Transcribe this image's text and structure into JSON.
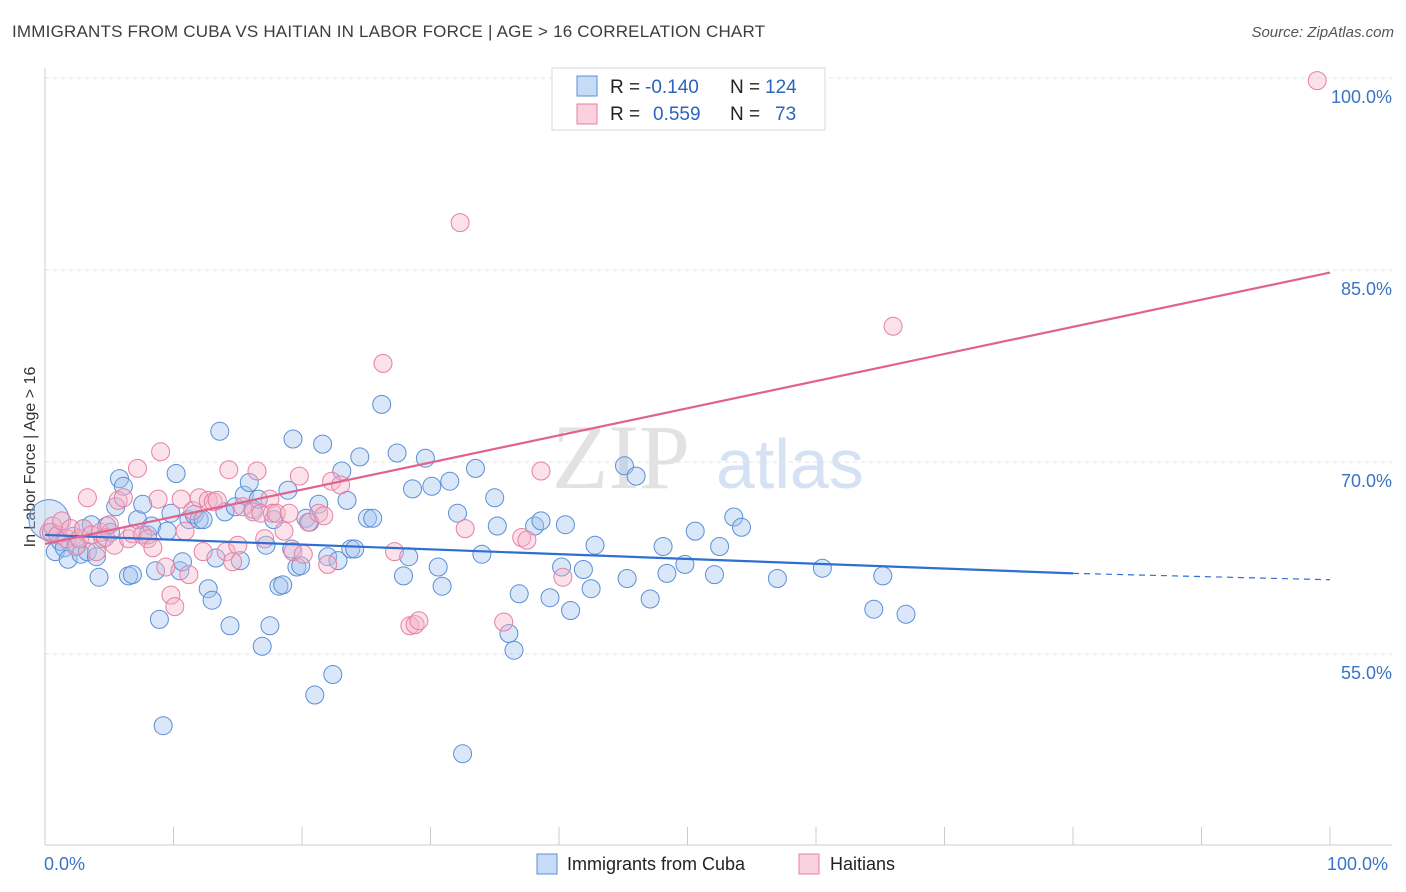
{
  "title": "IMMIGRANTS FROM CUBA VS HAITIAN IN LABOR FORCE | AGE > 16 CORRELATION CHART",
  "source": "Source: ZipAtlas.com",
  "watermark": {
    "zip": "ZIP",
    "atlas": "atlas"
  },
  "colors": {
    "blue": "#5b8fd6",
    "blue_fill": "rgba(160,195,240,0.40)",
    "pink": "#e87fa3",
    "pink_fill": "rgba(245,180,200,0.40)",
    "blue_line": "#2f6fd0",
    "pink_line": "#e0628f"
  },
  "legend": {
    "r_label": "R =",
    "n_label": "N =",
    "rows": [
      {
        "r": "-0.140",
        "n": "124",
        "color": "blue"
      },
      {
        "r": "0.559",
        "n": "73",
        "color": "pink"
      }
    ]
  },
  "chart_data": {
    "type": "scatter",
    "ylabel": "In Labor Force | Age > 16",
    "xlim": [
      0,
      100
    ],
    "ylim": [
      40,
      102
    ],
    "x_tick_labels": [
      "0.0%",
      "100.0%"
    ],
    "y_ticks": [
      55,
      70,
      85,
      100
    ],
    "y_tick_labels": [
      "55.0%",
      "70.0%",
      "85.0%",
      "100.0%"
    ],
    "series": [
      {
        "name": "Immigrants from Cuba",
        "color": "blue",
        "trend": {
          "x0": 0,
          "y0": 64.3,
          "x1": 80,
          "y1": 61.3,
          "dash_to": 100,
          "dash_y": 60.8
        },
        "points": [
          [
            0.3,
            65.5
          ],
          [
            0.5,
            64.5
          ],
          [
            0.8,
            63.0
          ],
          [
            1.2,
            63.8
          ],
          [
            1.5,
            63.3
          ],
          [
            1.8,
            62.4
          ],
          [
            2.2,
            64.2
          ],
          [
            2.5,
            63.5
          ],
          [
            2.8,
            62.8
          ],
          [
            3.0,
            64.8
          ],
          [
            3.3,
            63.0
          ],
          [
            3.6,
            65.1
          ],
          [
            4.0,
            62.6
          ],
          [
            4.2,
            61.0
          ],
          [
            4.5,
            64.0
          ],
          [
            4.8,
            65.0
          ],
          [
            5.1,
            64.5
          ],
          [
            5.5,
            66.5
          ],
          [
            5.8,
            68.7
          ],
          [
            6.1,
            68.1
          ],
          [
            6.5,
            61.1
          ],
          [
            6.8,
            61.2
          ],
          [
            7.2,
            65.5
          ],
          [
            7.6,
            66.7
          ],
          [
            8.0,
            64.3
          ],
          [
            8.3,
            65.0
          ],
          [
            8.6,
            61.5
          ],
          [
            8.9,
            57.7
          ],
          [
            9.2,
            49.4
          ],
          [
            9.5,
            64.6
          ],
          [
            9.8,
            66.0
          ],
          [
            10.2,
            69.1
          ],
          [
            10.5,
            61.5
          ],
          [
            10.7,
            62.2
          ],
          [
            11.2,
            65.5
          ],
          [
            11.6,
            65.9
          ],
          [
            12.0,
            65.5
          ],
          [
            12.3,
            65.5
          ],
          [
            12.7,
            60.1
          ],
          [
            13.0,
            59.2
          ],
          [
            13.3,
            62.5
          ],
          [
            13.6,
            72.4
          ],
          [
            14.0,
            66.1
          ],
          [
            14.4,
            57.2
          ],
          [
            14.8,
            66.5
          ],
          [
            15.2,
            62.3
          ],
          [
            15.5,
            67.4
          ],
          [
            15.9,
            68.4
          ],
          [
            16.2,
            66.3
          ],
          [
            16.6,
            67.1
          ],
          [
            16.9,
            55.6
          ],
          [
            17.2,
            63.5
          ],
          [
            17.5,
            57.2
          ],
          [
            17.8,
            65.5
          ],
          [
            18.2,
            60.3
          ],
          [
            18.5,
            60.4
          ],
          [
            18.9,
            67.8
          ],
          [
            19.2,
            63.2
          ],
          [
            19.3,
            71.8
          ],
          [
            19.6,
            61.8
          ],
          [
            19.9,
            61.9
          ],
          [
            20.3,
            65.6
          ],
          [
            20.6,
            65.3
          ],
          [
            21.0,
            51.8
          ],
          [
            21.3,
            66.7
          ],
          [
            21.6,
            71.4
          ],
          [
            22.0,
            62.6
          ],
          [
            22.4,
            53.4
          ],
          [
            22.8,
            62.3
          ],
          [
            23.1,
            69.3
          ],
          [
            23.5,
            67.0
          ],
          [
            23.8,
            63.2
          ],
          [
            24.1,
            63.2
          ],
          [
            24.5,
            70.4
          ],
          [
            25.1,
            65.6
          ],
          [
            25.5,
            65.6
          ],
          [
            26.2,
            74.5
          ],
          [
            27.4,
            70.7
          ],
          [
            27.9,
            61.1
          ],
          [
            28.3,
            62.6
          ],
          [
            28.6,
            67.9
          ],
          [
            29.6,
            70.3
          ],
          [
            30.1,
            68.1
          ],
          [
            30.6,
            61.8
          ],
          [
            30.9,
            60.3
          ],
          [
            31.5,
            68.5
          ],
          [
            32.1,
            66.0
          ],
          [
            32.5,
            47.2
          ],
          [
            33.5,
            69.5
          ],
          [
            34.0,
            62.8
          ],
          [
            35.0,
            67.2
          ],
          [
            35.2,
            65.0
          ],
          [
            36.1,
            56.6
          ],
          [
            36.5,
            55.3
          ],
          [
            36.9,
            59.7
          ],
          [
            38.1,
            65.0
          ],
          [
            38.6,
            65.4
          ],
          [
            39.3,
            59.4
          ],
          [
            40.2,
            61.8
          ],
          [
            40.5,
            65.1
          ],
          [
            40.9,
            58.4
          ],
          [
            41.9,
            61.6
          ],
          [
            42.5,
            60.1
          ],
          [
            42.8,
            63.5
          ],
          [
            45.1,
            69.7
          ],
          [
            45.3,
            60.9
          ],
          [
            46.0,
            68.9
          ],
          [
            47.1,
            59.3
          ],
          [
            48.1,
            63.4
          ],
          [
            48.4,
            61.3
          ],
          [
            49.8,
            62.0
          ],
          [
            50.6,
            64.6
          ],
          [
            52.1,
            61.2
          ],
          [
            52.5,
            63.4
          ],
          [
            53.6,
            65.7
          ],
          [
            54.2,
            64.9
          ],
          [
            57.0,
            60.9
          ],
          [
            60.5,
            61.7
          ],
          [
            64.5,
            58.5
          ],
          [
            65.2,
            61.1
          ],
          [
            67.0,
            58.1
          ]
        ]
      },
      {
        "name": "Haitians",
        "color": "pink",
        "trend": {
          "x0": 0,
          "y0": 63.6,
          "x1": 100,
          "y1": 84.8
        },
        "points": [
          [
            0.3,
            64.5
          ],
          [
            0.6,
            65.0
          ],
          [
            1.0,
            64.3
          ],
          [
            1.3,
            65.4
          ],
          [
            1.7,
            64.0
          ],
          [
            2.0,
            64.8
          ],
          [
            2.4,
            63.4
          ],
          [
            2.7,
            64.0
          ],
          [
            3.0,
            64.8
          ],
          [
            3.3,
            67.2
          ],
          [
            3.6,
            64.3
          ],
          [
            4.0,
            63.0
          ],
          [
            4.3,
            64.5
          ],
          [
            4.7,
            64.1
          ],
          [
            5.0,
            65.1
          ],
          [
            5.4,
            63.5
          ],
          [
            5.7,
            67.0
          ],
          [
            6.1,
            67.2
          ],
          [
            6.5,
            64.0
          ],
          [
            6.8,
            64.4
          ],
          [
            7.2,
            69.5
          ],
          [
            7.6,
            64.3
          ],
          [
            8.0,
            64.0
          ],
          [
            8.4,
            63.3
          ],
          [
            8.8,
            67.1
          ],
          [
            9.0,
            70.8
          ],
          [
            9.4,
            61.8
          ],
          [
            9.8,
            59.6
          ],
          [
            10.1,
            58.7
          ],
          [
            10.6,
            67.1
          ],
          [
            10.9,
            64.6
          ],
          [
            11.2,
            61.2
          ],
          [
            11.5,
            66.2
          ],
          [
            12.0,
            67.2
          ],
          [
            12.3,
            63.0
          ],
          [
            12.7,
            67.0
          ],
          [
            13.1,
            66.9
          ],
          [
            13.4,
            67.0
          ],
          [
            14.1,
            63.0
          ],
          [
            14.3,
            69.4
          ],
          [
            14.6,
            62.2
          ],
          [
            15.0,
            63.5
          ],
          [
            15.4,
            66.5
          ],
          [
            16.2,
            66.1
          ],
          [
            16.5,
            69.3
          ],
          [
            16.8,
            66.0
          ],
          [
            17.1,
            64.0
          ],
          [
            17.5,
            67.1
          ],
          [
            17.7,
            66.0
          ],
          [
            18.0,
            66.0
          ],
          [
            18.6,
            64.6
          ],
          [
            19.0,
            66.0
          ],
          [
            19.3,
            63.0
          ],
          [
            19.8,
            68.9
          ],
          [
            20.1,
            62.8
          ],
          [
            20.5,
            65.3
          ],
          [
            21.3,
            66.0
          ],
          [
            21.7,
            65.8
          ],
          [
            22.0,
            62.0
          ],
          [
            22.3,
            68.5
          ],
          [
            23.0,
            68.2
          ],
          [
            26.3,
            77.7
          ],
          [
            27.2,
            63.0
          ],
          [
            28.4,
            57.2
          ],
          [
            28.8,
            57.3
          ],
          [
            29.1,
            57.6
          ],
          [
            32.3,
            88.7
          ],
          [
            32.7,
            64.8
          ],
          [
            35.7,
            57.5
          ],
          [
            37.1,
            64.1
          ],
          [
            37.5,
            63.9
          ],
          [
            38.6,
            69.3
          ],
          [
            40.3,
            61.0
          ],
          [
            66.0,
            80.6
          ],
          [
            99.0,
            99.8
          ]
        ]
      }
    ]
  },
  "bottom_legend": [
    "Immigrants from Cuba",
    "Haitians"
  ]
}
